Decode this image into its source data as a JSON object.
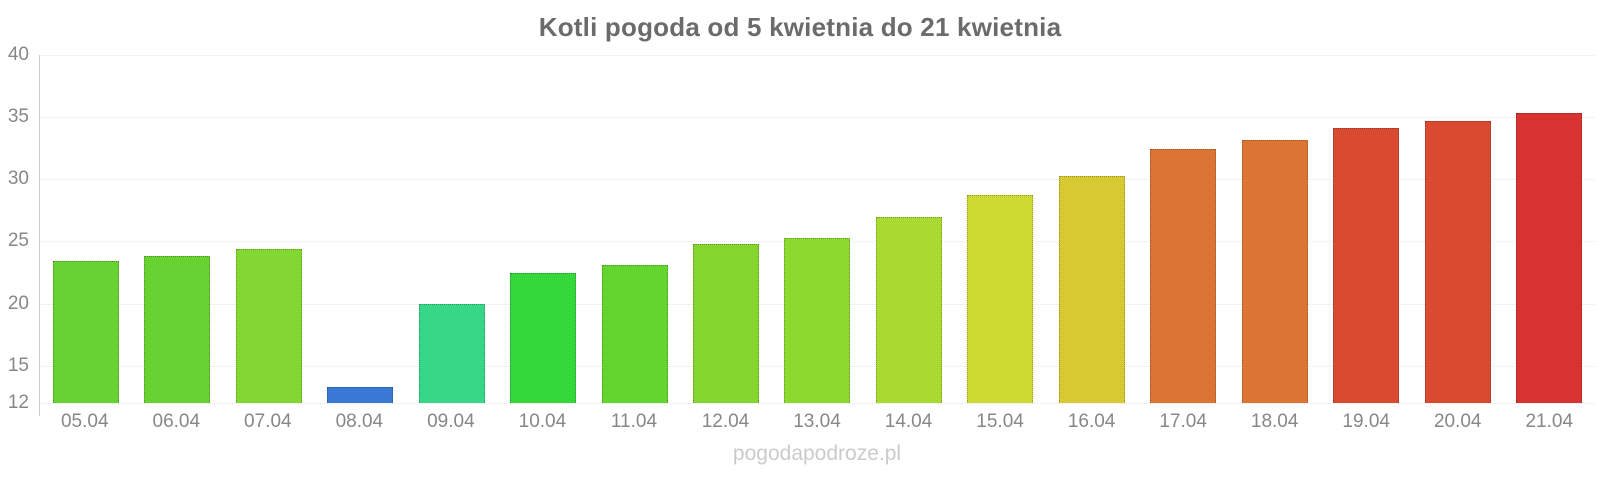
{
  "title": {
    "text": "Kotli pogoda od 5 kwietnia do 21 kwietnia",
    "color": "#6b6b6b"
  },
  "watermark": {
    "text": "pogodapodroze.pl",
    "color": "#cbcbcb"
  },
  "axis": {
    "line_color": "#cccccc",
    "grid_color": "#e6e6e6",
    "label_color": "#878787"
  },
  "chart_data": {
    "type": "bar",
    "title": "Kotli pogoda od 5 kwietnia do 21 kwietnia",
    "categories": [
      "05.04",
      "06.04",
      "07.04",
      "08.04",
      "09.04",
      "10.04",
      "11.04",
      "12.04",
      "13.04",
      "14.04",
      "15.04",
      "16.04",
      "17.04",
      "18.04",
      "19.04",
      "20.04",
      "21.04"
    ],
    "values": [
      23.4,
      23.8,
      24.4,
      13.3,
      20.0,
      22.5,
      23.1,
      24.8,
      25.3,
      27.0,
      28.7,
      30.3,
      32.4,
      33.2,
      34.1,
      34.7,
      35.3
    ],
    "bar_colors": [
      "#68d233",
      "#68d233",
      "#83d733",
      "#3a78d6",
      "#38d687",
      "#35d83b",
      "#64d52e",
      "#84d62f",
      "#8dd930",
      "#a8da31",
      "#ccda32",
      "#d7c932",
      "#db7434",
      "#db7434",
      "#d84b31",
      "#d84b31",
      "#d63331"
    ],
    "xlabel": "",
    "ylabel": "",
    "ylim": [
      12,
      40
    ],
    "yticks": [
      40,
      35,
      30,
      25,
      20,
      15,
      12
    ],
    "grid": true,
    "legend": false
  }
}
